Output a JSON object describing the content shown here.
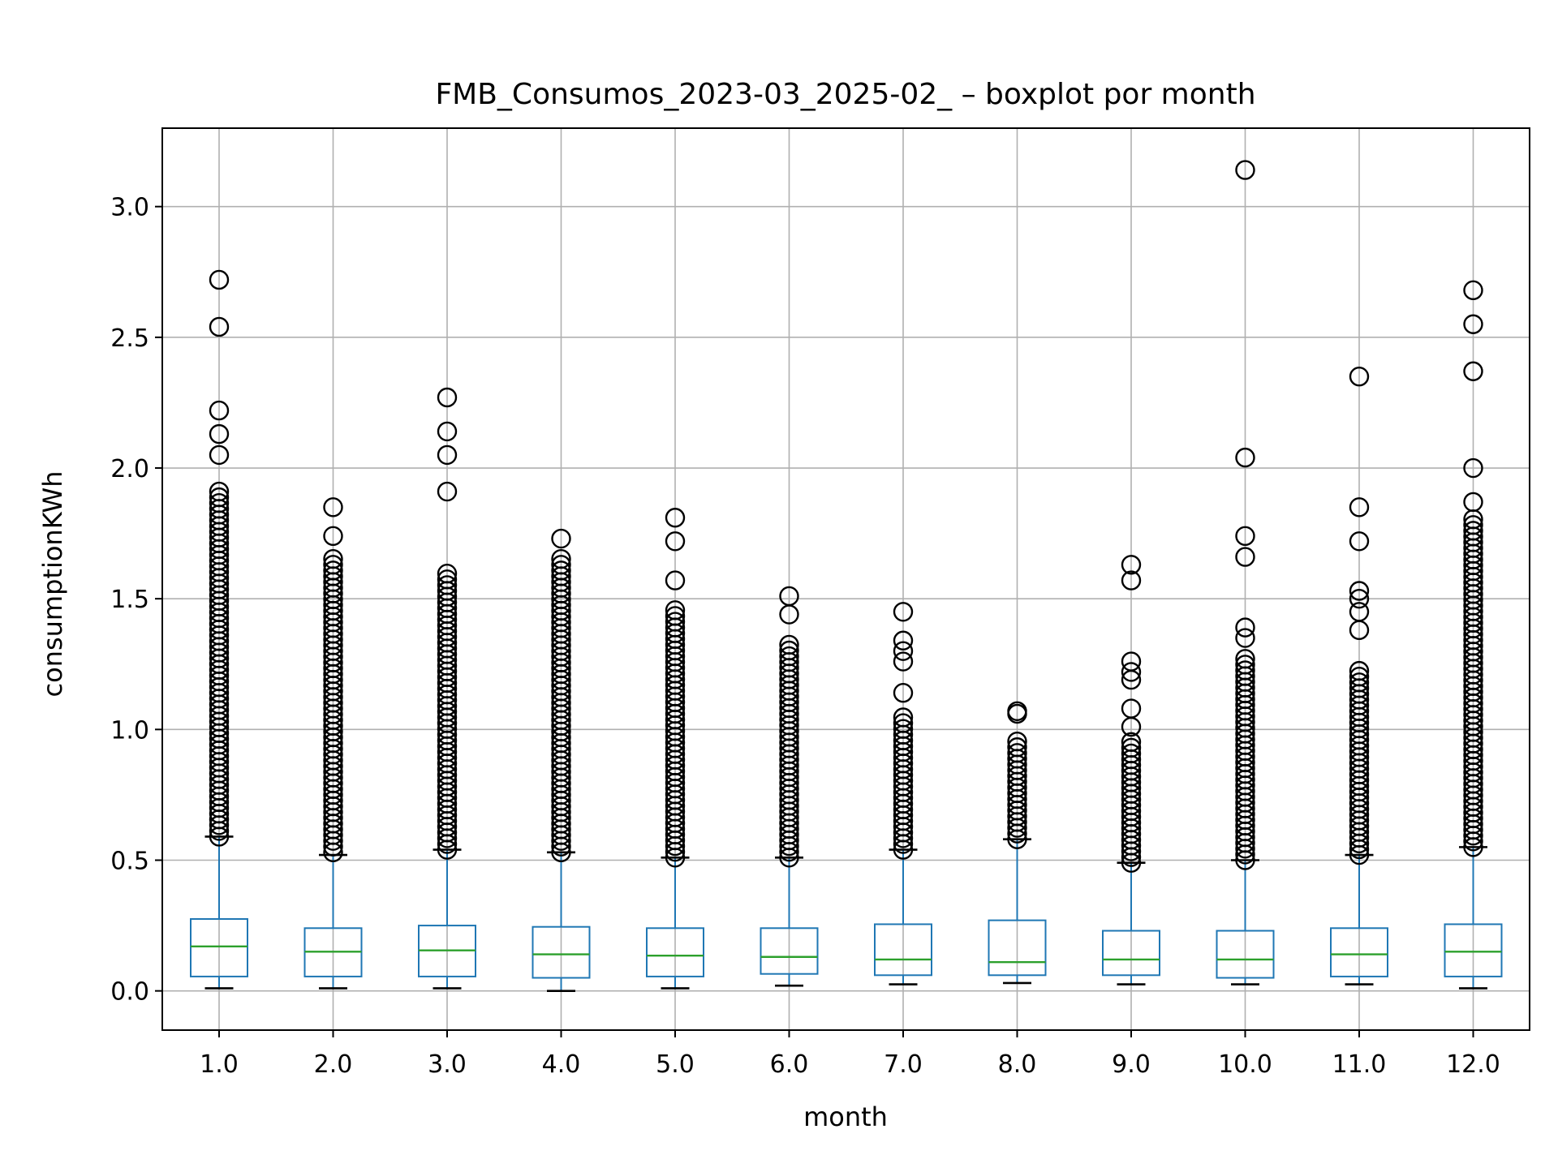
{
  "chart_data": {
    "type": "boxplot",
    "title": "FMB_Consumos_2023-03_2025-02_ – boxplot por month",
    "xlabel": "month",
    "ylabel": "consumptionKWh",
    "categories": [
      "1.0",
      "2.0",
      "3.0",
      "4.0",
      "5.0",
      "6.0",
      "7.0",
      "8.0",
      "9.0",
      "10.0",
      "11.0",
      "12.0"
    ],
    "ylim": [
      -0.15,
      3.3
    ],
    "yticks": [
      "0.0",
      "0.5",
      "1.0",
      "1.5",
      "2.0",
      "2.5",
      "3.0"
    ],
    "grid": true,
    "colors": {
      "box": "#1f77b4",
      "median": "#2ca02c",
      "whisker": "#1f77b4",
      "cap": "#000000",
      "flier": "#000000",
      "grid": "#b0b0b0"
    },
    "boxes": [
      {
        "month": "1.0",
        "whislo": 0.01,
        "q1": 0.055,
        "med": 0.17,
        "q3": 0.275,
        "whishi": 0.59,
        "fliers_range": [
          0.59,
          1.93
        ],
        "fliers_extra": [
          2.05,
          2.13,
          2.22,
          2.54,
          2.72
        ]
      },
      {
        "month": "2.0",
        "whislo": 0.01,
        "q1": 0.055,
        "med": 0.15,
        "q3": 0.24,
        "whishi": 0.52,
        "fliers_range": [
          0.53,
          1.66
        ],
        "fliers_extra": [
          1.74,
          1.85
        ]
      },
      {
        "month": "3.0",
        "whislo": 0.01,
        "q1": 0.055,
        "med": 0.155,
        "q3": 0.25,
        "whishi": 0.54,
        "fliers_range": [
          0.54,
          1.6
        ],
        "fliers_extra": [
          1.91,
          2.05,
          2.14,
          2.27
        ]
      },
      {
        "month": "4.0",
        "whislo": 0.0,
        "q1": 0.05,
        "med": 0.14,
        "q3": 0.245,
        "whishi": 0.53,
        "fliers_range": [
          0.53,
          1.66
        ],
        "fliers_extra": [
          1.73
        ]
      },
      {
        "month": "5.0",
        "whislo": 0.01,
        "q1": 0.055,
        "med": 0.135,
        "q3": 0.24,
        "whishi": 0.51,
        "fliers_range": [
          0.51,
          1.47
        ],
        "fliers_extra": [
          1.57,
          1.72,
          1.81
        ]
      },
      {
        "month": "6.0",
        "whislo": 0.02,
        "q1": 0.065,
        "med": 0.13,
        "q3": 0.24,
        "whishi": 0.51,
        "fliers_range": [
          0.51,
          1.33
        ],
        "fliers_extra": [
          1.44,
          1.51
        ]
      },
      {
        "month": "7.0",
        "whislo": 0.025,
        "q1": 0.06,
        "med": 0.12,
        "q3": 0.255,
        "whishi": 0.54,
        "fliers_range": [
          0.54,
          1.05
        ],
        "fliers_extra": [
          1.14,
          1.26,
          1.3,
          1.34,
          1.45
        ]
      },
      {
        "month": "8.0",
        "whislo": 0.03,
        "q1": 0.06,
        "med": 0.11,
        "q3": 0.27,
        "whishi": 0.58,
        "fliers_range": [
          0.58,
          0.97
        ],
        "fliers_extra": [
          1.06,
          1.07
        ]
      },
      {
        "month": "9.0",
        "whislo": 0.025,
        "q1": 0.06,
        "med": 0.12,
        "q3": 0.23,
        "whishi": 0.49,
        "fliers_range": [
          0.49,
          0.96
        ],
        "fliers_extra": [
          1.01,
          1.08,
          1.19,
          1.22,
          1.26,
          1.57,
          1.63
        ]
      },
      {
        "month": "10.0",
        "whislo": 0.025,
        "q1": 0.05,
        "med": 0.12,
        "q3": 0.23,
        "whishi": 0.5,
        "fliers_range": [
          0.5,
          1.28
        ],
        "fliers_extra": [
          1.35,
          1.39,
          1.66,
          1.74,
          2.04,
          3.14
        ]
      },
      {
        "month": "11.0",
        "whislo": 0.025,
        "q1": 0.055,
        "med": 0.14,
        "q3": 0.24,
        "whishi": 0.52,
        "fliers_range": [
          0.52,
          1.24
        ],
        "fliers_extra": [
          1.38,
          1.45,
          1.5,
          1.53,
          1.72,
          1.85,
          2.35
        ]
      },
      {
        "month": "12.0",
        "whislo": 0.01,
        "q1": 0.055,
        "med": 0.15,
        "q3": 0.255,
        "whishi": 0.55,
        "fliers_range": [
          0.55,
          1.81
        ],
        "fliers_extra": [
          1.87,
          2.0,
          2.37,
          2.55,
          2.68
        ]
      }
    ]
  }
}
